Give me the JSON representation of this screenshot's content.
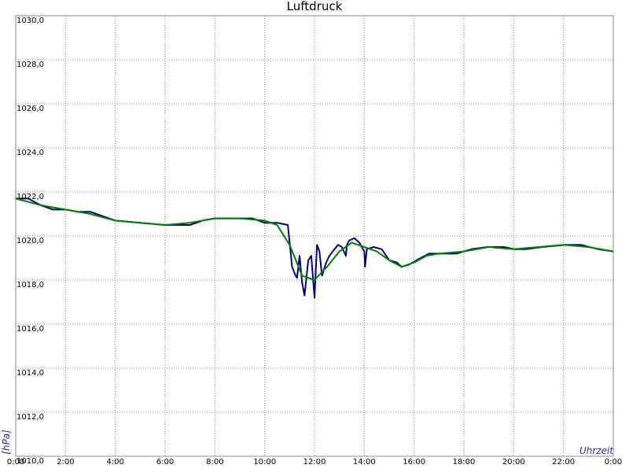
{
  "chart_data": {
    "type": "line",
    "title": "Luftdruck",
    "y_label": "[hPa]",
    "x_label": "Uhrzeit",
    "xlim": [
      0,
      24
    ],
    "xticks": [
      {
        "value": 0,
        "label": "0:00"
      },
      {
        "value": 2,
        "label": "2:00"
      },
      {
        "value": 4,
        "label": "4:00"
      },
      {
        "value": 6,
        "label": "6:00"
      },
      {
        "value": 8,
        "label": "8:00"
      },
      {
        "value": 10,
        "label": "10:00"
      },
      {
        "value": 12,
        "label": "12:00"
      },
      {
        "value": 14,
        "label": "14:00"
      },
      {
        "value": 16,
        "label": "16:00"
      },
      {
        "value": 18,
        "label": "18:00"
      },
      {
        "value": 20,
        "label": "20:00"
      },
      {
        "value": 22,
        "label": "22:00"
      },
      {
        "value": 24,
        "label": "0:00"
      }
    ],
    "ylim": [
      1010,
      1030
    ],
    "yticks": [
      {
        "value": 1010,
        "label": "1010,0"
      },
      {
        "value": 1012,
        "label": "1012,0"
      },
      {
        "value": 1014,
        "label": "1014,0"
      },
      {
        "value": 1016,
        "label": "1016,0"
      },
      {
        "value": 1018,
        "label": "1018,0"
      },
      {
        "value": 1020,
        "label": "1020,0"
      },
      {
        "value": 1022,
        "label": "1022,0"
      },
      {
        "value": 1024,
        "label": "1024,0"
      },
      {
        "value": 1026,
        "label": "1026,0"
      },
      {
        "value": 1028,
        "label": "1028,0"
      },
      {
        "value": 1030,
        "label": "1030,0"
      }
    ],
    "grid": true,
    "series": [
      {
        "color": "#000080",
        "x": [
          0,
          0.5,
          1,
          1.5,
          2,
          2.5,
          3,
          3.5,
          4,
          5,
          6,
          7,
          7.5,
          8,
          9,
          9.5,
          10,
          10.5,
          10.93,
          11.1,
          11.24,
          11.3,
          11.4,
          11.5,
          11.6,
          11.75,
          11.87,
          12.0,
          12.1,
          12.2,
          12.3,
          12.47,
          12.6,
          12.8,
          12.95,
          13.1,
          13.26,
          13.3,
          13.4,
          13.6,
          13.8,
          14.0,
          14.03,
          14.1,
          14.37,
          14.7,
          15.0,
          15.3,
          15.5,
          15.8,
          16.1,
          16.6,
          17.05,
          17.7,
          18.3,
          18.95,
          19.6,
          20.05,
          20.5,
          21.15,
          22.1,
          22.7,
          23.4,
          24
        ],
        "values": [
          1021.7,
          1021.7,
          1021.4,
          1021.2,
          1021.2,
          1021.1,
          1021.1,
          1020.9,
          1020.7,
          1020.6,
          1020.5,
          1020.5,
          1020.7,
          1020.8,
          1020.8,
          1020.8,
          1020.6,
          1020.6,
          1020.5,
          1018.6,
          1018.2,
          1018.1,
          1019.1,
          1017.9,
          1017.3,
          1018.9,
          1019.1,
          1017.2,
          1019.6,
          1019.3,
          1018.2,
          1018.8,
          1019.1,
          1019.4,
          1019.6,
          1019.5,
          1019.1,
          1019.6,
          1019.8,
          1019.9,
          1019.7,
          1019.3,
          1018.6,
          1019.4,
          1019.5,
          1019.4,
          1018.9,
          1018.8,
          1018.6,
          1018.7,
          1018.9,
          1019.2,
          1019.2,
          1019.2,
          1019.4,
          1019.5,
          1019.5,
          1019.4,
          1019.4,
          1019.5,
          1019.6,
          1019.6,
          1019.4,
          1019.3
        ]
      },
      {
        "color": "#008000",
        "x": [
          0,
          1,
          2,
          3,
          4,
          5,
          6,
          7,
          8,
          9,
          10,
          10.5,
          11,
          11.5,
          12,
          12.5,
          13,
          13.5,
          14,
          14.5,
          15,
          15.5,
          16,
          16.5,
          17,
          18,
          19,
          20,
          21,
          22,
          23,
          24
        ],
        "values": [
          1021.7,
          1021.4,
          1021.2,
          1021.0,
          1020.7,
          1020.6,
          1020.5,
          1020.6,
          1020.8,
          1020.8,
          1020.7,
          1020.5,
          1019.6,
          1018.2,
          1018.0,
          1018.6,
          1019.3,
          1019.7,
          1019.5,
          1019.3,
          1018.9,
          1018.6,
          1018.8,
          1019.1,
          1019.2,
          1019.3,
          1019.5,
          1019.4,
          1019.5,
          1019.6,
          1019.5,
          1019.3
        ]
      }
    ]
  }
}
